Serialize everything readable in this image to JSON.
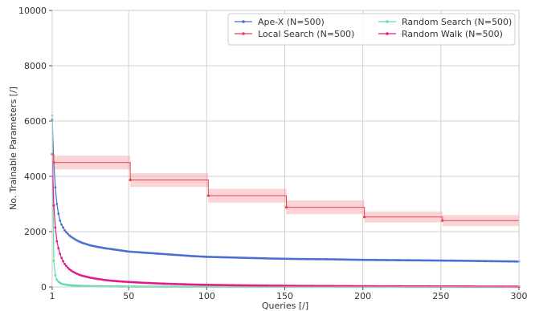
{
  "chart_data": {
    "type": "line",
    "xlabel": "Queries [/]",
    "ylabel": "No. Trainable Parameters [/]",
    "xlim": [
      1,
      300
    ],
    "ylim": [
      0,
      10000
    ],
    "x_ticks": [
      {
        "value": 1,
        "label": "1"
      },
      {
        "value": 50,
        "label": "50"
      },
      {
        "value": 100,
        "label": "100"
      },
      {
        "value": 150,
        "label": "150"
      },
      {
        "value": 200,
        "label": "200"
      },
      {
        "value": 250,
        "label": "250"
      },
      {
        "value": 300,
        "label": "300"
      }
    ],
    "y_ticks": [
      {
        "value": 0,
        "label": "0"
      },
      {
        "value": 2000,
        "label": "2000"
      },
      {
        "value": 4000,
        "label": "4000"
      },
      {
        "value": 6000,
        "label": "6000"
      },
      {
        "value": 8000,
        "label": "8000"
      },
      {
        "value": 10000,
        "label": "10000"
      }
    ],
    "grid": true,
    "legend_position": "top-right",
    "series": [
      {
        "name": "Ape-X (N=500)",
        "color": "#4a6fd1",
        "marker": "dot",
        "x": [
          1,
          2,
          3,
          4,
          5,
          6,
          7,
          8,
          9,
          10,
          12,
          14,
          16,
          18,
          20,
          25,
          30,
          35,
          40,
          45,
          50,
          60,
          70,
          80,
          90,
          100,
          120,
          140,
          160,
          180,
          200,
          220,
          240,
          260,
          280,
          300
        ],
        "y": [
          6050,
          4500,
          3600,
          3000,
          2650,
          2400,
          2250,
          2150,
          2050,
          1980,
          1860,
          1780,
          1710,
          1650,
          1600,
          1510,
          1450,
          1400,
          1360,
          1320,
          1280,
          1240,
          1200,
          1160,
          1120,
          1090,
          1060,
          1030,
          1010,
          1000,
          980,
          970,
          960,
          950,
          935,
          920
        ]
      },
      {
        "name": "Local Search (N=500)",
        "color": "#e8414d",
        "band_color": "#f4a0a6",
        "steps": [
          {
            "x_start": 1,
            "x_end": 2,
            "y": 4800,
            "band": [
              4700,
              4900
            ]
          },
          {
            "x_start": 2,
            "x_end": 51,
            "y": 4500,
            "band": [
              4250,
              4750
            ]
          },
          {
            "x_start": 51,
            "x_end": 101,
            "y": 3870,
            "band": [
              3620,
              4120
            ]
          },
          {
            "x_start": 101,
            "x_end": 151,
            "y": 3300,
            "band": [
              3050,
              3550
            ]
          },
          {
            "x_start": 151,
            "x_end": 201,
            "y": 2880,
            "band": [
              2630,
              3130
            ]
          },
          {
            "x_start": 201,
            "x_end": 251,
            "y": 2530,
            "band": [
              2330,
              2730
            ]
          },
          {
            "x_start": 251,
            "x_end": 300,
            "y": 2400,
            "band": [
              2200,
              2600
            ]
          }
        ]
      },
      {
        "name": "Random Search (N=500)",
        "color": "#5ce0a6",
        "marker": "dot",
        "x": [
          1,
          2,
          3,
          4,
          5,
          6,
          7,
          8,
          10,
          12,
          15,
          20,
          25,
          30,
          40,
          50,
          60,
          80,
          100,
          150,
          200,
          250,
          300
        ],
        "y": [
          6200,
          950,
          420,
          260,
          190,
          150,
          120,
          100,
          80,
          65,
          50,
          38,
          30,
          25,
          18,
          14,
          11,
          8,
          6,
          4,
          3,
          2,
          2
        ]
      },
      {
        "name": "Random Walk (N=500)",
        "color": "#e6198a",
        "marker": "dot",
        "x": [
          1,
          2,
          3,
          4,
          5,
          6,
          7,
          8,
          9,
          10,
          12,
          14,
          16,
          18,
          20,
          25,
          30,
          35,
          40,
          50,
          60,
          70,
          80,
          90,
          100,
          120,
          140,
          160,
          180,
          200,
          250,
          300
        ],
        "y": [
          4800,
          2950,
          2150,
          1650,
          1400,
          1200,
          1050,
          930,
          830,
          760,
          640,
          560,
          500,
          450,
          410,
          340,
          290,
          250,
          220,
          180,
          150,
          125,
          105,
          90,
          78,
          60,
          48,
          40,
          34,
          28,
          18,
          12
        ]
      }
    ]
  }
}
